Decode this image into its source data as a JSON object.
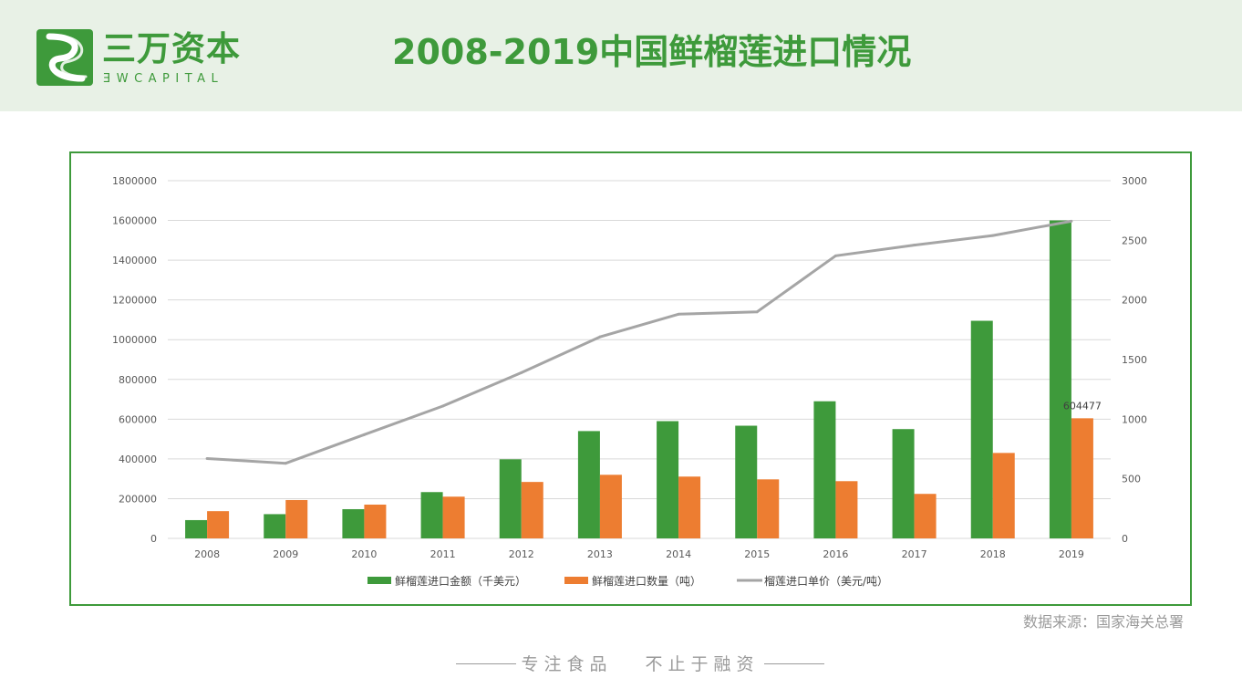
{
  "header": {
    "logo_cn": "三万资本",
    "logo_en": "ƎWCAPITAL",
    "title": "2008-2019中国鲜榴莲进口情况"
  },
  "colors": {
    "brand": "#3e9a3b",
    "header_bg": "#e8f1e6",
    "bar_amount": "#3e9a3b",
    "bar_quantity": "#ed7d31",
    "line_price": "#a5a5a5"
  },
  "chart_data": {
    "type": "bar",
    "categories": [
      "2008",
      "2009",
      "2010",
      "2011",
      "2012",
      "2013",
      "2014",
      "2015",
      "2016",
      "2017",
      "2018",
      "2019"
    ],
    "series": [
      {
        "name": "鲜榴莲进口金额（千美元）",
        "type": "bar",
        "axis": "left",
        "values": [
          92000,
          122000,
          147000,
          233000,
          398000,
          540000,
          590000,
          567000,
          690000,
          550000,
          1095000,
          1600000
        ]
      },
      {
        "name": "鲜榴莲进口数量（吨）",
        "type": "bar",
        "axis": "left",
        "values": [
          137000,
          193000,
          170000,
          210000,
          284000,
          320000,
          311000,
          297000,
          288000,
          224000,
          430000,
          604477
        ]
      },
      {
        "name": "榴莲进口单价（美元/吨）",
        "type": "line",
        "axis": "right",
        "values": [
          670,
          630,
          870,
          1110,
          1390,
          1690,
          1880,
          1900,
          2370,
          2460,
          2540,
          2660
        ]
      }
    ],
    "data_labels": [
      {
        "series": 1,
        "index": 11,
        "text": "604477"
      }
    ],
    "y_left": {
      "lim": [
        0,
        1800000
      ],
      "ticks": [
        "0",
        "200000",
        "400000",
        "600000",
        "800000",
        "1000000",
        "1200000",
        "1400000",
        "1600000",
        "1800000"
      ]
    },
    "y_right": {
      "lim": [
        0,
        3000
      ],
      "ticks": [
        "0",
        "500",
        "1000",
        "1500",
        "2000",
        "2500",
        "3000"
      ]
    },
    "grid": true,
    "legend_position": "bottom"
  },
  "footer": {
    "source": "数据来源：国家海关总署",
    "slogan": "专注食品   不止于融资"
  }
}
